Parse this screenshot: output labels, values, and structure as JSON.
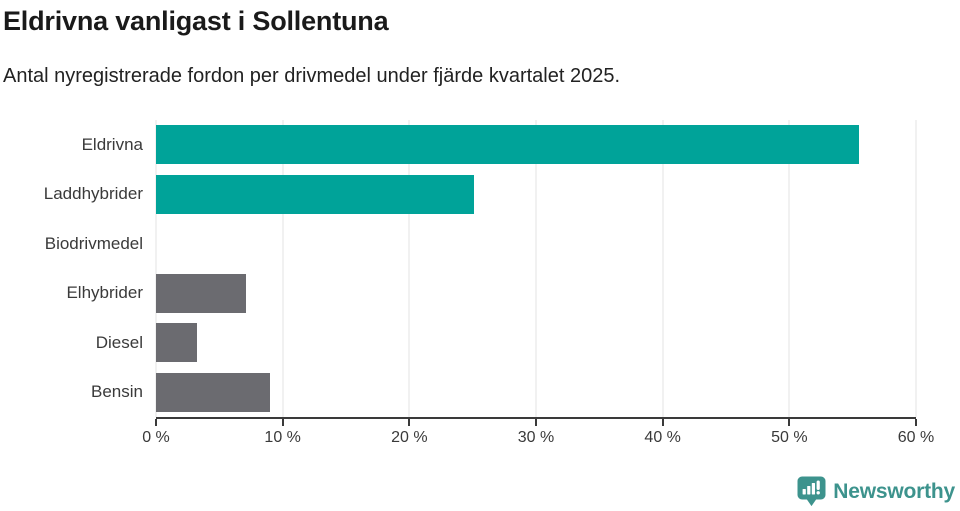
{
  "chart_data": {
    "type": "bar",
    "orientation": "horizontal",
    "title": "Eldrivna vanligast i Sollentuna",
    "subtitle": "Antal nyregistrerade fordon per drivmedel under fjärde kvartalet 2025.",
    "categories": [
      "Eldrivna",
      "Laddhybrider",
      "Biodrivmedel",
      "Elhybrider",
      "Diesel",
      "Bensin"
    ],
    "values": [
      55.5,
      25.1,
      0,
      7.1,
      3.2,
      9.0
    ],
    "unit": "%",
    "xlim": [
      0,
      60
    ],
    "x_tick_values": [
      0,
      10,
      20,
      30,
      40,
      50,
      60
    ],
    "x_tick_labels": [
      "0 %",
      "10 %",
      "20 %",
      "30 %",
      "40 %",
      "50 %",
      "60 %"
    ],
    "bar_colors": [
      "#00A399",
      "#00A399",
      "#6B6B70",
      "#6B6B70",
      "#6B6B70",
      "#6B6B70"
    ],
    "grid": "vertical-light",
    "legend": "none"
  },
  "colors": {
    "accent": "#00A399",
    "muted_bar": "#6B6B70",
    "grid": "#E3E3E3",
    "axis": "#3A3A3A",
    "text_dark": "#1A1A1A",
    "text_body": "#222222",
    "text_label": "#3A3A3A",
    "brand": "#3D938D"
  },
  "footer": {
    "brand": "Newsworthy"
  }
}
